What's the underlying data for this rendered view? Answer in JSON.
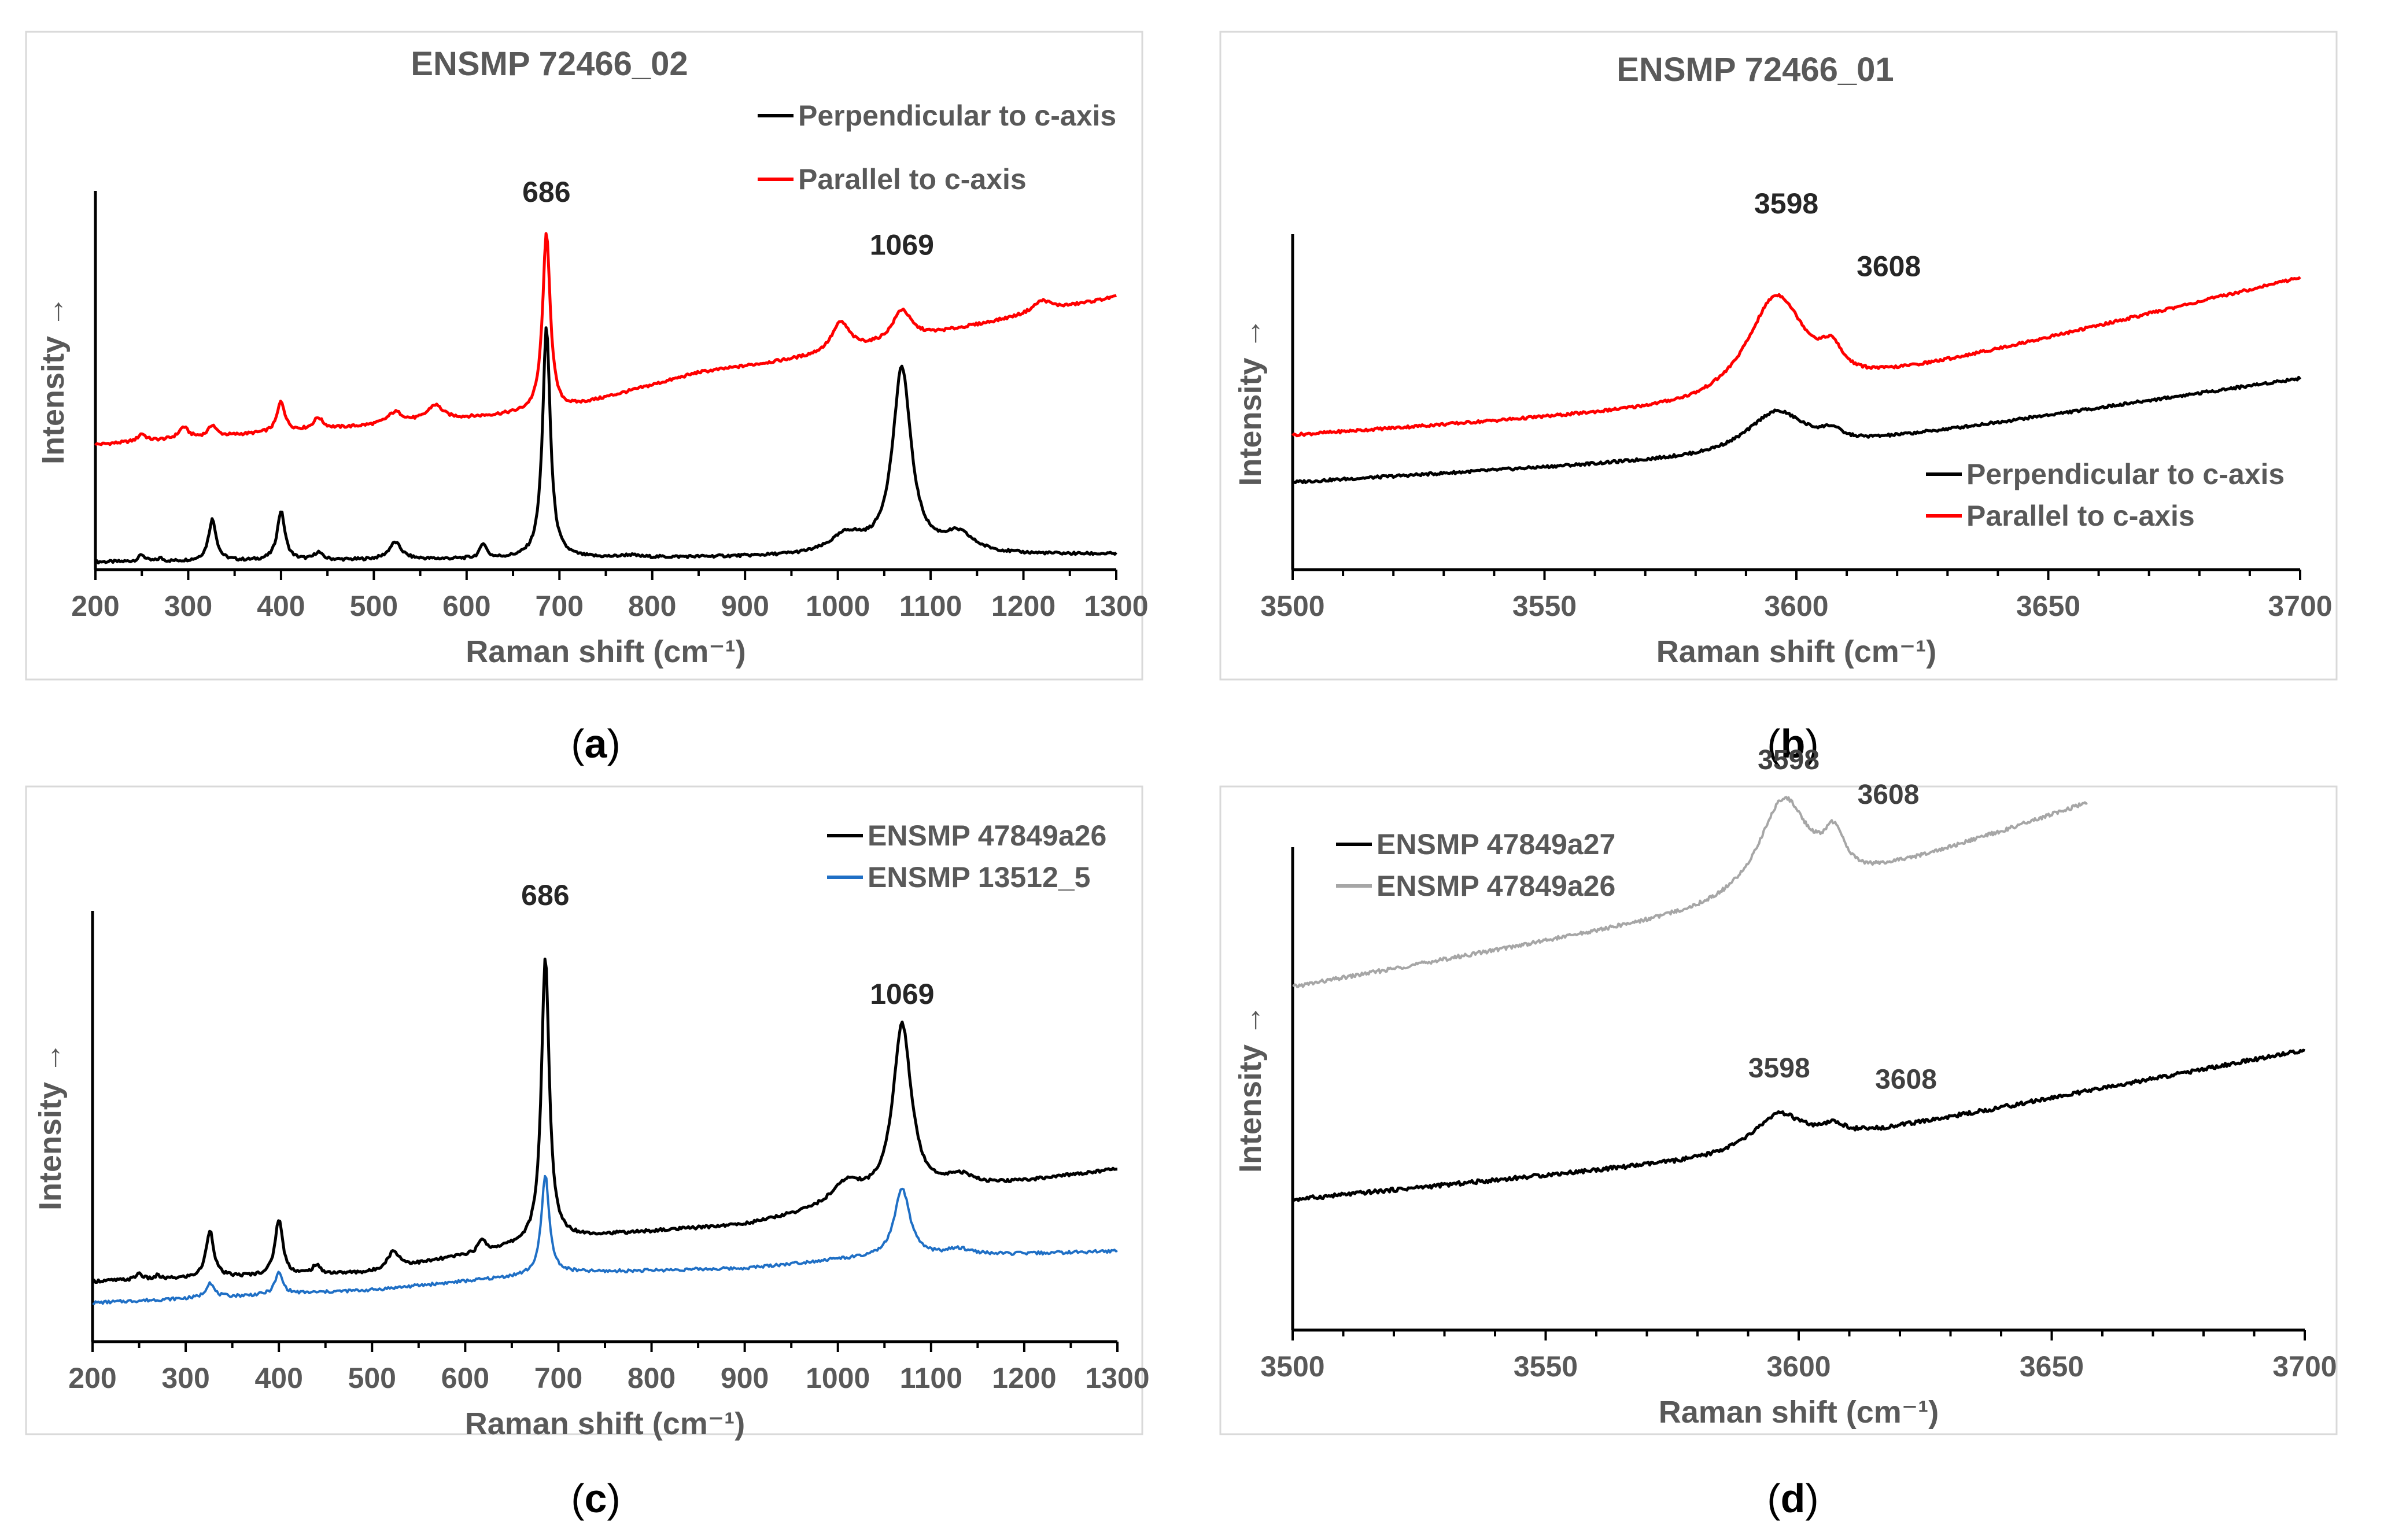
{
  "chart_data": [
    {
      "panel": "a",
      "type": "line",
      "caption": "(a)",
      "title": "ENSMP 72466_02",
      "xlabel": "Raman shift (cm⁻¹)",
      "ylabel": "Intensity →",
      "xlim": [
        200,
        1300
      ],
      "xticks": [
        200,
        300,
        400,
        500,
        600,
        700,
        800,
        900,
        1000,
        1100,
        1200,
        1300
      ],
      "ylim": [
        0,
        100
      ],
      "y_ticks_shown": false,
      "grid": false,
      "legend_position": "top-right",
      "colors": {
        "perpendicular": "#000000",
        "parallel": "#ff0000"
      },
      "annotations": [
        {
          "text": "686",
          "x": 686,
          "y": 91
        },
        {
          "text": "1069",
          "x": 1069,
          "y": 77
        }
      ],
      "series": [
        {
          "name": "Perpendicular to c-axis",
          "color": "#000000",
          "baseline": [
            [
              200,
              2
            ],
            [
              1300,
              4
            ]
          ],
          "peaks": [
            [
              250,
              1.8,
              4
            ],
            [
              270,
              0.8,
              3
            ],
            [
              326,
              11,
              5
            ],
            [
              400,
              13,
              5
            ],
            [
              440,
              2,
              5
            ],
            [
              523,
              4.5,
              8
            ],
            [
              618,
              4,
              4
            ],
            [
              686,
              61,
              5
            ],
            [
              775,
              0.6,
              10
            ],
            [
              1010,
              5,
              22
            ],
            [
              1069,
              49,
              12
            ],
            [
              1130,
              5,
              20
            ]
          ]
        },
        {
          "name": "Parallel to c-axis",
          "color": "#ff0000",
          "baseline": [
            [
              200,
              33
            ],
            [
              500,
              38
            ],
            [
              700,
              42
            ],
            [
              850,
              52
            ],
            [
              1000,
              57
            ],
            [
              1300,
              72
            ]
          ],
          "peaks": [
            [
              250,
              2,
              5
            ],
            [
              295,
              3,
              6
            ],
            [
              326,
              3,
              5
            ],
            [
              400,
              8,
              5
            ],
            [
              440,
              3,
              6
            ],
            [
              523,
              3,
              10
            ],
            [
              566,
              4,
              10
            ],
            [
              686,
              47,
              5
            ],
            [
              1003,
              8,
              12
            ],
            [
              1069,
              8,
              12
            ],
            [
              1220,
              3,
              12
            ]
          ]
        }
      ]
    },
    {
      "panel": "b",
      "type": "line",
      "caption": "(b)",
      "title": "ENSMP 72466_01",
      "xlabel": "Raman shift (cm⁻¹)",
      "ylabel": "Intensity →",
      "xlim": [
        3500,
        3700
      ],
      "xticks": [
        3500,
        3550,
        3600,
        3650,
        3700
      ],
      "ylim": [
        0,
        100
      ],
      "y_ticks_shown": false,
      "grid": false,
      "legend_position": "bottom-right",
      "colors": {
        "perpendicular": "#000000",
        "parallel": "#ff0000"
      },
      "annotations": [
        {
          "text": "3598",
          "x": 3598,
          "y": 99
        },
        {
          "text": "3608",
          "x": 3608,
          "y": 82
        }
      ],
      "series": [
        {
          "name": "Perpendicular to c-axis",
          "color": "#000000",
          "baseline": [
            [
              3500,
              26
            ],
            [
              3580,
              33
            ],
            [
              3610,
              37
            ],
            [
              3700,
              57
            ]
          ],
          "peaks": [
            [
              3596,
              12,
              7
            ],
            [
              3607,
              3,
              2.5
            ]
          ]
        },
        {
          "name": "Parallel to c-axis",
          "color": "#ff0000",
          "baseline": [
            [
              3500,
              40
            ],
            [
              3580,
              48
            ],
            [
              3612,
              55
            ],
            [
              3700,
              87
            ]
          ],
          "peaks": [
            [
              3596,
              30,
              7
            ],
            [
              3607,
              7,
              2.5
            ]
          ]
        }
      ]
    },
    {
      "panel": "c",
      "type": "line",
      "caption": "(c)",
      "title": "",
      "xlabel": "Raman shift (cm⁻¹)",
      "ylabel": "Intensity →",
      "xlim": [
        200,
        1300
      ],
      "xticks": [
        200,
        300,
        400,
        500,
        600,
        700,
        800,
        900,
        1000,
        1100,
        1200,
        1300
      ],
      "ylim": [
        0,
        100
      ],
      "y_ticks_shown": false,
      "grid": false,
      "legend_position": "top-right",
      "colors": {
        "ENSMP 47849a26": "#000000",
        "ENSMP 13512_5": "#1f6fc5"
      },
      "annotations": [
        {
          "text": "686",
          "x": 686,
          "y": 96
        },
        {
          "text": "1069",
          "x": 1069,
          "y": 73
        }
      ],
      "series": [
        {
          "name": "ENSMP 47849a26",
          "color": "#000000",
          "baseline": [
            [
              200,
              14
            ],
            [
              500,
              16
            ],
            [
              700,
              24
            ],
            [
              900,
              27
            ],
            [
              1000,
              31
            ],
            [
              1300,
              40
            ]
          ],
          "peaks": [
            [
              250,
              1.5,
              4
            ],
            [
              270,
              0.8,
              3
            ],
            [
              326,
              11,
              5
            ],
            [
              400,
              13,
              5
            ],
            [
              440,
              2,
              5
            ],
            [
              523,
              4,
              8
            ],
            [
              618,
              3,
              4
            ],
            [
              686,
              66,
              5
            ],
            [
              1010,
              5,
              20
            ],
            [
              1069,
              40,
              12
            ],
            [
              1130,
              3,
              20
            ]
          ]
        },
        {
          "name": "ENSMP 13512_5",
          "color": "#1f6fc5",
          "baseline": [
            [
              200,
              9
            ],
            [
              500,
              12
            ],
            [
              700,
              16
            ],
            [
              900,
              17
            ],
            [
              1000,
              19
            ],
            [
              1300,
              21
            ]
          ],
          "peaks": [
            [
              326,
              3.5,
              5
            ],
            [
              400,
              5,
              5
            ],
            [
              686,
              23,
              5
            ],
            [
              1069,
              16,
              10
            ],
            [
              1130,
              1.5,
              18
            ]
          ]
        }
      ]
    },
    {
      "panel": "d",
      "type": "line",
      "caption": "(d)",
      "title": "",
      "xlabel": "Raman shift (cm⁻¹)",
      "ylabel": "Intensity →",
      "xlim": [
        3500,
        3700
      ],
      "xticks": [
        3500,
        3550,
        3600,
        3650,
        3700
      ],
      "ylim": [
        0,
        100
      ],
      "y_ticks_shown": false,
      "grid": false,
      "legend_position": "top-left",
      "colors": {
        "ENSMP 47849a27": "#000000",
        "ENSMP 47849a26": "#a6a6a6"
      },
      "annotations": [
        {
          "text": "3598",
          "x": 3598,
          "y": 112
        },
        {
          "text": "3608",
          "x": 3608,
          "y": 106
        },
        {
          "text": "3598",
          "x": 3595,
          "y": 49
        },
        {
          "text": "3608",
          "x": 3610,
          "y": 47
        }
      ],
      "series": [
        {
          "name": "ENSMP 47849a27",
          "color": "#000000",
          "baseline": [
            [
              3500,
              27
            ],
            [
              3580,
              35
            ],
            [
              3615,
              41
            ],
            [
              3700,
              58
            ]
          ],
          "peaks": [
            [
              3596,
              7,
              6
            ],
            [
              3607,
              2,
              2.5
            ]
          ]
        },
        {
          "name": "ENSMP 47849a26",
          "color": "#a6a6a6",
          "x_end": 3657,
          "baseline": [
            [
              3500,
              71
            ],
            [
              3580,
              86
            ],
            [
              3612,
              93
            ],
            [
              3657,
              109
            ]
          ],
          "peaks": [
            [
              3597,
              20,
              6
            ],
            [
              3607,
              8,
              2.5
            ]
          ]
        }
      ]
    }
  ]
}
